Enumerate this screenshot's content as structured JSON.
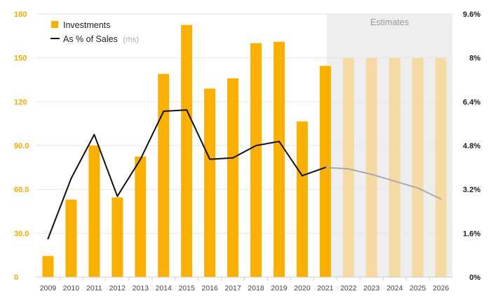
{
  "chart_data": {
    "type": "bar",
    "categories": [
      "2009",
      "2010",
      "2011",
      "2012",
      "2013",
      "2014",
      "2015",
      "2016",
      "2017",
      "2018",
      "2019",
      "2020",
      "2021",
      "2022",
      "2023",
      "2024",
      "2025",
      "2026"
    ],
    "series": [
      {
        "name": "Investments",
        "axis": "left",
        "type": "bar",
        "values": [
          14.5,
          53,
          90,
          54.5,
          82.5,
          139,
          172.5,
          129,
          136,
          160,
          161,
          106.5,
          144.5,
          150,
          150,
          150,
          150,
          150
        ],
        "estimate_from": "2022"
      },
      {
        "name": "As % of Sales",
        "suffix": "(rhs)",
        "axis": "right",
        "type": "line",
        "values": [
          1.4,
          3.6,
          5.2,
          2.95,
          4.3,
          6.05,
          6.1,
          4.3,
          4.35,
          4.8,
          4.95,
          3.7,
          4.0,
          3.95,
          3.75,
          3.5,
          3.25,
          2.85
        ],
        "estimate_from": "2021"
      }
    ],
    "ylim_left": [
      0,
      180
    ],
    "ylim_right": [
      0,
      9.6
    ],
    "yticks_left": [
      "0",
      "30.0",
      "60.0",
      "90.0",
      "120",
      "150",
      "180"
    ],
    "yticks_right": [
      "0%",
      "1.6%",
      "3.2%",
      "4.8%",
      "6.4%",
      "8%",
      "9.6%"
    ],
    "estimates_label": "Estimates",
    "legend_position": "top-left",
    "colors": {
      "bar": "#f9b000",
      "bar_estimate": "#f5dba3",
      "line": "#111111",
      "line_estimate": "#a9a9a9",
      "estimate_band": "#eeeeee",
      "grid": "#e6e6e6",
      "left_axis_text": "#f2a900",
      "right_axis_text": "#222222"
    }
  }
}
